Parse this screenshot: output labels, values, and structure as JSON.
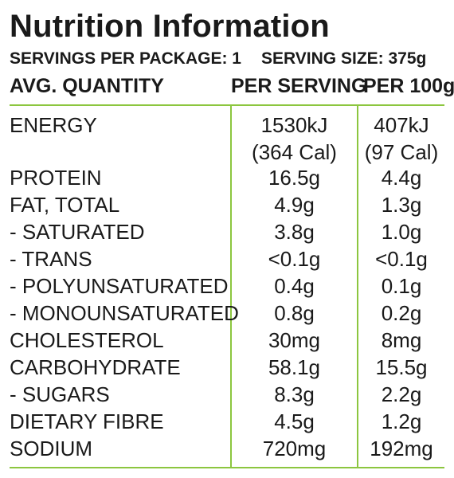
{
  "title": "Nutrition Information",
  "servings_per_package": "SERVINGS PER PACKAGE: 1",
  "serving_size": "SERVING SIZE: 375g",
  "columns": {
    "quantity": "AVG. QUANTITY",
    "per_serving": "PER SERVING",
    "per_100g": "PER 100g"
  },
  "colors": {
    "rule": "#8cc63f",
    "text": "#1a1a1a"
  },
  "rows": [
    {
      "name": "ENERGY",
      "per_serving": "1530kJ",
      "per_100g": "407kJ",
      "per_serving_2": "(364 Cal)",
      "per_100g_2": "(97 Cal)"
    },
    {
      "name": "PROTEIN",
      "per_serving": "16.5g",
      "per_100g": "4.4g"
    },
    {
      "name": "FAT, TOTAL",
      "per_serving": "4.9g",
      "per_100g": "1.3g"
    },
    {
      "name": "- SATURATED",
      "per_serving": "3.8g",
      "per_100g": "1.0g"
    },
    {
      "name": "- TRANS",
      "per_serving": "<0.1g",
      "per_100g": "<0.1g"
    },
    {
      "name": "- POLYUNSATURATED",
      "per_serving": "0.4g",
      "per_100g": "0.1g"
    },
    {
      "name": "- MONOUNSATURATED",
      "per_serving": "0.8g",
      "per_100g": "0.2g"
    },
    {
      "name": "CHOLESTEROL",
      "per_serving": "30mg",
      "per_100g": "8mg"
    },
    {
      "name": "CARBOHYDRATE",
      "per_serving": "58.1g",
      "per_100g": "15.5g"
    },
    {
      "name": "- SUGARS",
      "per_serving": "8.3g",
      "per_100g": "2.2g"
    },
    {
      "name": "DIETARY FIBRE",
      "per_serving": "4.5g",
      "per_100g": "1.2g"
    },
    {
      "name": "SODIUM",
      "per_serving": "720mg",
      "per_100g": "192mg"
    }
  ]
}
